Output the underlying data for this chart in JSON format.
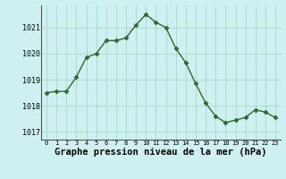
{
  "x": [
    0,
    1,
    2,
    3,
    4,
    5,
    6,
    7,
    8,
    9,
    10,
    11,
    12,
    13,
    14,
    15,
    16,
    17,
    18,
    19,
    20,
    21,
    22,
    23
  ],
  "y": [
    1018.5,
    1018.55,
    1018.55,
    1019.1,
    1019.85,
    1020.0,
    1020.5,
    1020.5,
    1020.6,
    1021.1,
    1021.5,
    1021.2,
    1021.0,
    1020.2,
    1019.65,
    1018.85,
    1018.1,
    1017.6,
    1017.35,
    1017.45,
    1017.55,
    1017.85,
    1017.75,
    1017.55
  ],
  "line_color": "#2d6a2d",
  "marker": "D",
  "marker_size": 2.5,
  "bg_color": "#cff0f0",
  "grid_color": "#aaddcc",
  "xlabel": "Graphe pression niveau de la mer (hPa)",
  "xlabel_fontsize": 7.5,
  "ylabel_ticks": [
    1017,
    1018,
    1019,
    1020,
    1021
  ],
  "xticks": [
    0,
    1,
    2,
    3,
    4,
    5,
    6,
    7,
    8,
    9,
    10,
    11,
    12,
    13,
    14,
    15,
    16,
    17,
    18,
    19,
    20,
    21,
    22,
    23
  ],
  "ylim": [
    1016.7,
    1021.85
  ],
  "xlim": [
    -0.5,
    23.5
  ]
}
